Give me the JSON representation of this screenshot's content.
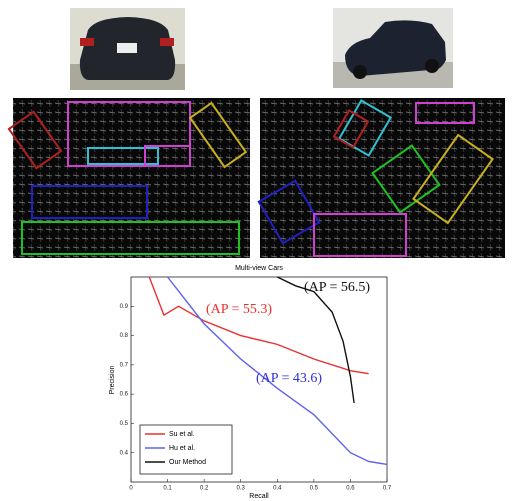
{
  "chart_data": {
    "type": "line",
    "title": "Multi-view Cars",
    "x_label": "Recall",
    "y_label": "Precision",
    "xlim": [
      0,
      0.7
    ],
    "xticks": [
      0,
      0.1,
      0.2,
      0.3,
      0.4,
      0.5,
      0.6,
      0.7
    ],
    "ylim": [
      0.3,
      1
    ],
    "yticks": [
      0.4,
      0.5,
      0.6,
      0.7,
      0.8,
      0.9
    ],
    "legend": "lower left",
    "series": [
      {
        "name": "Su et al.",
        "color": "#e83030",
        "x": [
          0.05,
          0.09,
          0.13,
          0.2,
          0.3,
          0.4,
          0.5,
          0.6,
          0.65
        ],
        "values": [
          1.0,
          0.87,
          0.9,
          0.85,
          0.8,
          0.77,
          0.72,
          0.68,
          0.67
        ]
      },
      {
        "name": "Hu et al.",
        "color": "#6060f0",
        "x": [
          0.1,
          0.15,
          0.2,
          0.3,
          0.4,
          0.5,
          0.6,
          0.65,
          0.7
        ],
        "values": [
          1.0,
          0.92,
          0.84,
          0.72,
          0.62,
          0.53,
          0.4,
          0.37,
          0.36
        ]
      },
      {
        "name": "Our Method",
        "color": "#111111",
        "x": [
          0.4,
          0.45,
          0.5,
          0.55,
          0.58,
          0.6,
          0.61
        ],
        "values": [
          1.0,
          0.97,
          0.95,
          0.88,
          0.78,
          0.66,
          0.57
        ]
      }
    ],
    "annotations": [
      {
        "text": "(AP = 56.5)",
        "color": "#111111"
      },
      {
        "text": "(AP = 55.3)",
        "color": "#e83030"
      },
      {
        "text": "(AP = 43.6)",
        "color": "#3030d0"
      }
    ]
  }
}
